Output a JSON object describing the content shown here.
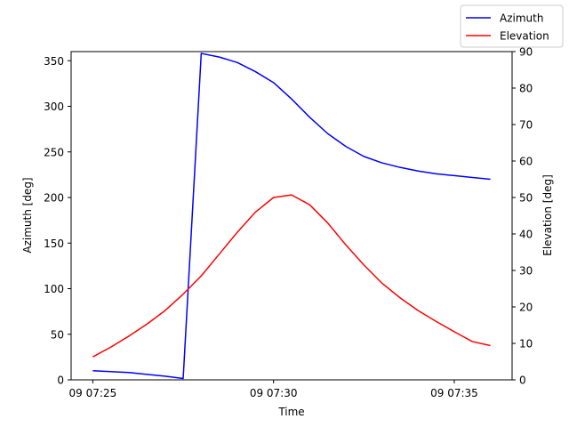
{
  "chart_data": {
    "type": "line",
    "xlabel": "Time",
    "ylabel_left": "Azimuth [deg]",
    "ylabel_right": "Elevation [deg]",
    "x_ticks": [
      "09 07:25",
      "09 07:30",
      "09 07:35"
    ],
    "x_tick_minutes": [
      0,
      5,
      10
    ],
    "xlim_minutes": [
      -0.6,
      11.6
    ],
    "ylim_left": [
      0,
      360
    ],
    "yticks_left": [
      0,
      50,
      100,
      150,
      200,
      250,
      300,
      350
    ],
    "ylim_right": [
      0,
      90
    ],
    "yticks_right": [
      0,
      10,
      20,
      30,
      40,
      50,
      60,
      70,
      80,
      90
    ],
    "legend_position": "top-right",
    "grid": false,
    "x_minutes": [
      0,
      0.5,
      1,
      1.5,
      2,
      2.5,
      3,
      3.5,
      4,
      4.5,
      5,
      5.5,
      6,
      6.5,
      7,
      7.5,
      8,
      8.5,
      9,
      9.5,
      10,
      10.5,
      11
    ],
    "series": [
      {
        "name": "Azimuth",
        "axis": "left",
        "color": "#0000ff",
        "values": [
          10,
          9,
          8,
          6,
          4,
          1.5,
          358,
          354,
          348,
          338,
          326,
          308,
          288,
          270,
          256,
          245,
          238,
          233,
          229,
          226,
          224,
          222,
          220
        ]
      },
      {
        "name": "Elevation",
        "axis": "right",
        "color": "#ff0000",
        "values": [
          6.3,
          9,
          12,
          15.3,
          19,
          23.5,
          28.5,
          34.5,
          40.5,
          46,
          50,
          50.7,
          48,
          43,
          37,
          31.5,
          26.5,
          22.5,
          19,
          16,
          13.2,
          10.5,
          9.4
        ]
      }
    ]
  }
}
